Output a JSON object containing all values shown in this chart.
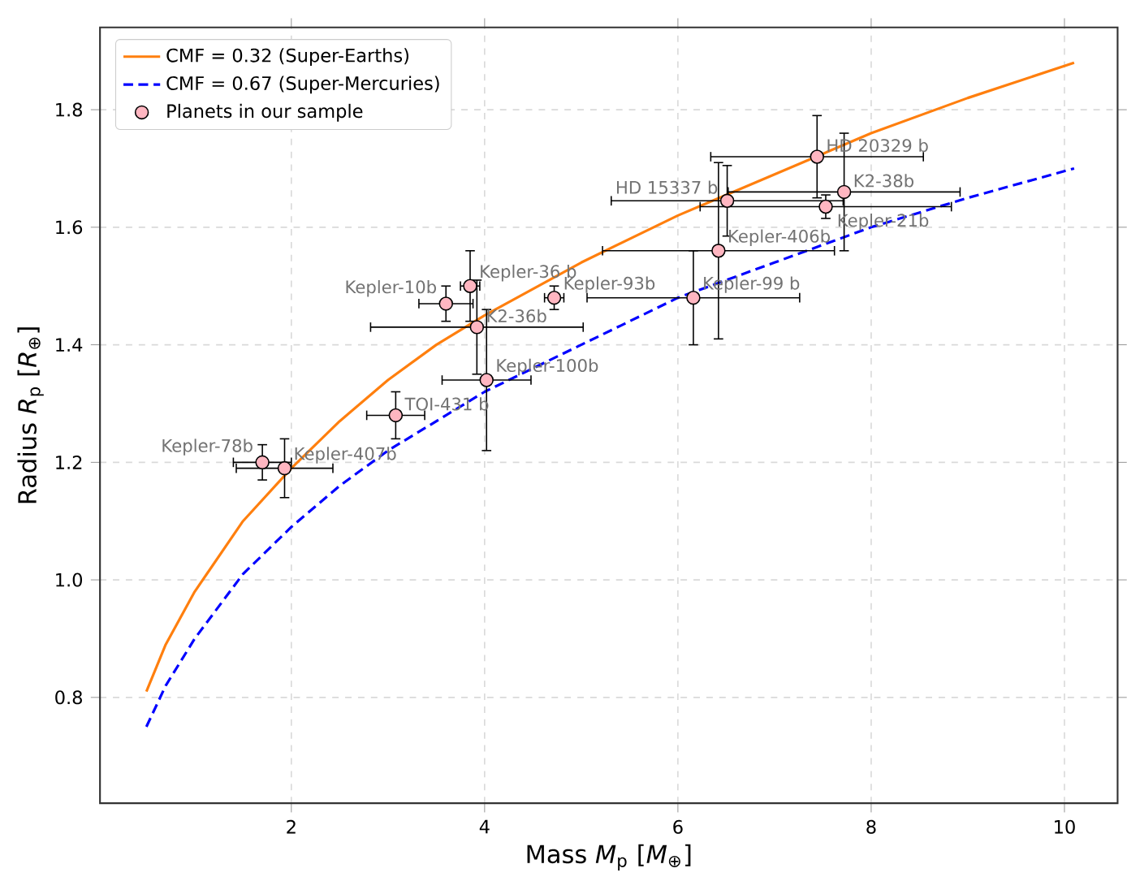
{
  "chart_data": {
    "type": "scatter",
    "xlabel": "Mass *M*$_{p}$ [*M*$_{⊕}$]",
    "ylabel": "Radius *R*$_{p}$ [*R*$_{⊕}$]",
    "xlim": [
      0.02,
      10.55
    ],
    "ylim": [
      0.62,
      1.94
    ],
    "xticks": [
      2,
      4,
      6,
      8,
      10
    ],
    "yticks": [
      0.8,
      {
        "value": 1.0,
        "label": "1.0"
      },
      1.2,
      1.4,
      1.6,
      1.8
    ],
    "grid": true,
    "legend": "top left",
    "series": [
      {
        "name": "CMF = 0.32 (Super-Earths)",
        "type": "line",
        "color": "#ff7f0e",
        "line_style": "solid",
        "marker": "none",
        "x": [
          0.5,
          0.7,
          1,
          1.5,
          2,
          2.5,
          3,
          3.5,
          4,
          5,
          6,
          7,
          8,
          9,
          10.1
        ],
        "values": [
          0.81,
          0.89,
          0.98,
          1.1,
          1.19,
          1.27,
          1.34,
          1.4,
          1.45,
          1.54,
          1.62,
          1.69,
          1.76,
          1.82,
          1.88
        ]
      },
      {
        "name": "CMF = 0.67 (Super-Mercuries)",
        "type": "line",
        "color": "#0000ff",
        "line_style": "dashed",
        "marker": "none",
        "x": [
          0.5,
          0.7,
          1,
          1.5,
          2,
          2.5,
          3,
          3.5,
          4,
          5,
          6,
          7,
          8,
          9,
          10.1
        ],
        "values": [
          0.75,
          0.82,
          0.9,
          1.01,
          1.09,
          1.16,
          1.22,
          1.27,
          1.32,
          1.4,
          1.48,
          1.54,
          1.6,
          1.65,
          1.7
        ]
      },
      {
        "name": "Planets in our sample",
        "color": "#ffb6c1",
        "marker": "circle",
        "x": [
          1.7,
          1.93,
          3.08,
          3.6,
          3.85,
          3.92,
          4.02,
          4.72,
          6.16,
          6.42,
          6.51,
          7.53,
          7.72,
          7.44
        ],
        "values": [
          1.2,
          1.19,
          1.28,
          1.47,
          1.5,
          1.43,
          1.34,
          1.48,
          1.48,
          1.56,
          1.645,
          1.635,
          1.66,
          1.72
        ],
        "xerrors": [
          0.3,
          0.5,
          0.3,
          0.28,
          0.1,
          1.1,
          0.46,
          0.1,
          1.1,
          1.2,
          1.2,
          1.3,
          1.2,
          1.1
        ],
        "errors": [
          0.03,
          0.05,
          0.04,
          0.03,
          0.06,
          0.08,
          0.12,
          0.02,
          0.08,
          0.15,
          0.06,
          0.02,
          0.1,
          0.07
        ]
      }
    ],
    "annotations": [
      {
        "text": "Kepler-78b",
        "x": 1.7,
        "y": 1.2
      },
      {
        "text": "Kepler-407b",
        "x": 1.93,
        "y": 1.19
      },
      {
        "text": "TOI-431 b",
        "x": 3.08,
        "y": 1.28
      },
      {
        "text": "Kepler-10b",
        "x": 3.6,
        "y": 1.47
      },
      {
        "text": "Kepler-36 b",
        "x": 3.85,
        "y": 1.5
      },
      {
        "text": "K2-36b",
        "x": 3.92,
        "y": 1.43
      },
      {
        "text": "Kepler-100b",
        "x": 4.02,
        "y": 1.34
      },
      {
        "text": "Kepler-93b",
        "x": 4.72,
        "y": 1.48
      },
      {
        "text": "Kepler-99 b",
        "x": 6.16,
        "y": 1.48
      },
      {
        "text": "Kepler-406b",
        "x": 6.42,
        "y": 1.56
      },
      {
        "text": "HD 15337 b",
        "x": 6.51,
        "y": 1.645
      },
      {
        "text": "Kepler-21b",
        "x": 7.53,
        "y": 1.635
      },
      {
        "text": "K2-38b",
        "x": 7.72,
        "y": 1.66
      },
      {
        "text": "HD 20329 b",
        "x": 7.44,
        "y": 1.72
      }
    ]
  }
}
